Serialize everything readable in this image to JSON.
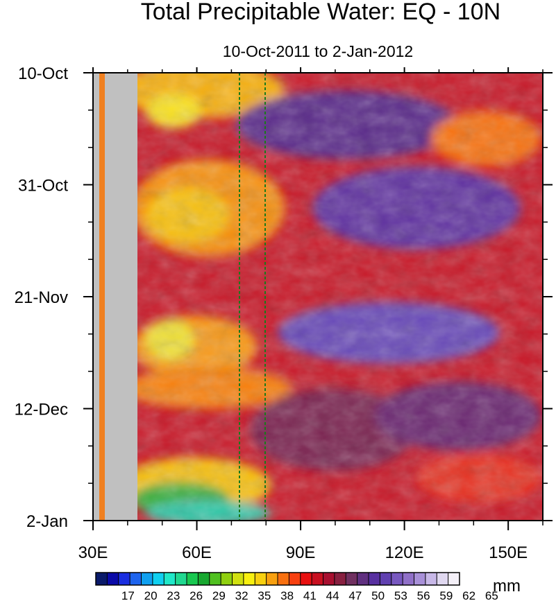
{
  "chart_data": {
    "type": "heatmap",
    "title": "Total Precipitable Water: EQ - 10N",
    "subtitle": "10-Oct-2011 to 2-Jan-2012",
    "xlabel": "",
    "ylabel": "",
    "x_range": [
      30,
      160
    ],
    "x_ticks": [
      {
        "value": 30,
        "label": "30E"
      },
      {
        "value": 60,
        "label": "60E"
      },
      {
        "value": 90,
        "label": "90E"
      },
      {
        "value": 120,
        "label": "120E"
      },
      {
        "value": 150,
        "label": "150E"
      }
    ],
    "y_ticks": [
      {
        "value": "2011-10-10",
        "label": "10-Oct"
      },
      {
        "value": "2011-10-31",
        "label": "31-Oct"
      },
      {
        "value": "2011-11-21",
        "label": "21-Nov"
      },
      {
        "value": "2011-12-12",
        "label": "12-Dec"
      },
      {
        "value": "2012-01-02",
        "label": "2-Jan"
      }
    ],
    "y_range": [
      "2011-10-10",
      "2012-01-02"
    ],
    "y_direction": "time increases downward",
    "colorbar": {
      "unit": "mm",
      "levels": [
        17,
        20,
        23,
        26,
        29,
        32,
        35,
        38,
        41,
        44,
        47,
        50,
        53,
        56,
        59,
        62,
        65
      ],
      "colors": [
        "#0a1a6a",
        "#0a0aa8",
        "#1a2ee0",
        "#1e64ee",
        "#10a0f0",
        "#10d0f0",
        "#20e8c8",
        "#20d890",
        "#18c850",
        "#18a830",
        "#50c020",
        "#90d010",
        "#d0e010",
        "#f8f010",
        "#f8d010",
        "#f8a010",
        "#f87010",
        "#f84010",
        "#e81010",
        "#c81020",
        "#a81030",
        "#882040",
        "#703060",
        "#603080",
        "#5830a0",
        "#6040b0",
        "#7858c0",
        "#9070c8",
        "#a890d8",
        "#c8b8e8",
        "#e0d8f0",
        "#f4f0f8"
      ]
    },
    "missing_region": {
      "x_range": [
        30,
        43
      ],
      "color": "#c0c0c0"
    },
    "dashed_meridians": [
      73,
      80
    ],
    "dashed_meridian_color": "#1a7a1a"
  }
}
